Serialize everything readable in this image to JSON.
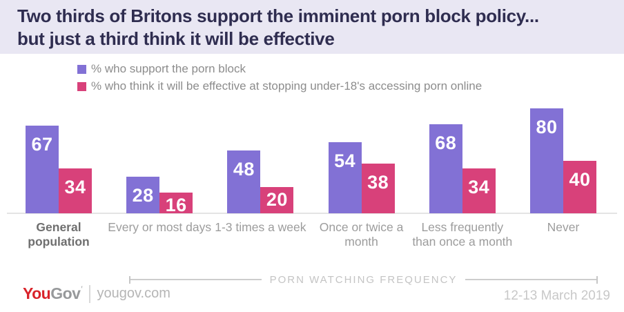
{
  "header": {
    "title_line1": "Two thirds of Britons support the imminent porn block policy...",
    "title_line2": "but just a third think it will be effective"
  },
  "legend": [
    {
      "label": "% who support the porn block",
      "color": "#8271d5"
    },
    {
      "label": "% who think it will be effective at stopping under-18's accessing porn online",
      "color": "#d8417a"
    }
  ],
  "chart_data": {
    "type": "bar",
    "categories": [
      "General population",
      "Every or most days",
      "1-3 times a week",
      "Once or twice a month",
      "Less frequently than once a month",
      "Never"
    ],
    "series": [
      {
        "name": "% who support the porn block",
        "color": "#8271d5",
        "values": [
          67,
          28,
          48,
          54,
          68,
          80
        ]
      },
      {
        "name": "% who think it will be effective at stopping under-18's accessing porn online",
        "color": "#d8417a",
        "values": [
          34,
          16,
          20,
          38,
          34,
          40
        ]
      }
    ],
    "title": "Two thirds of Britons support the imminent porn block policy... but just a third think it will be effective",
    "xlabel": "PORN WATCHING FREQUENCY",
    "ylabel": "",
    "ylim": [
      0,
      100
    ],
    "grid": false,
    "value_labels": true,
    "legend_position": "top-left",
    "emphasized_category": "General population"
  },
  "axis_annotation": {
    "label": "PORN WATCHING FREQUENCY"
  },
  "footer": {
    "logo_part1": "You",
    "logo_part2": "Gov",
    "logo_mark": "′",
    "website": "yougov.com",
    "date": "12-13 March 2019"
  }
}
